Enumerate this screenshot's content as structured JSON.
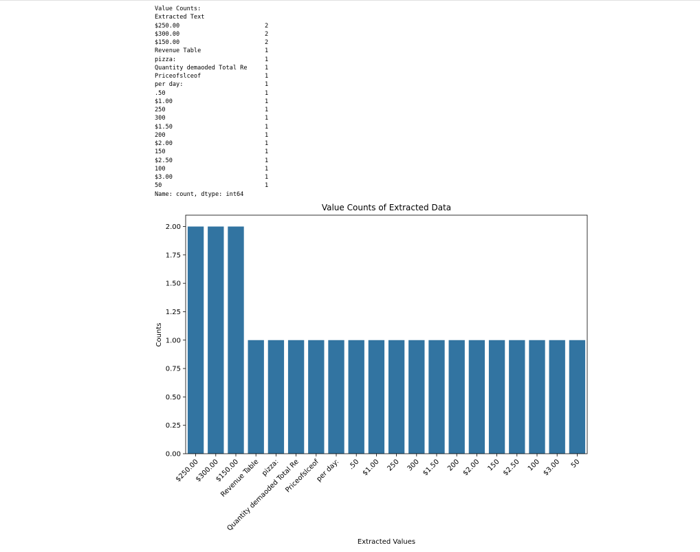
{
  "output": {
    "header": "Value Counts:",
    "index_name": "Extracted Text",
    "rows": [
      {
        "key": "$250.00",
        "count": "2"
      },
      {
        "key": "$300.00",
        "count": "2"
      },
      {
        "key": "$150.00",
        "count": "2"
      },
      {
        "key": "Revenue Table",
        "count": "1"
      },
      {
        "key": "pizza:",
        "count": "1"
      },
      {
        "key": "Quantity demaoded Total Re",
        "count": "1"
      },
      {
        "key": "Priceofslceof",
        "count": "1"
      },
      {
        "key": "per day:",
        "count": "1"
      },
      {
        "key": ".50",
        "count": "1"
      },
      {
        "key": "$1.00",
        "count": "1"
      },
      {
        "key": "250",
        "count": "1"
      },
      {
        "key": "300",
        "count": "1"
      },
      {
        "key": "$1.50",
        "count": "1"
      },
      {
        "key": "200",
        "count": "1"
      },
      {
        "key": "$2.00",
        "count": "1"
      },
      {
        "key": "150",
        "count": "1"
      },
      {
        "key": "$2.50",
        "count": "1"
      },
      {
        "key": "100",
        "count": "1"
      },
      {
        "key": "$3.00",
        "count": "1"
      },
      {
        "key": "50",
        "count": "1"
      }
    ],
    "footer": "Name: count, dtype: int64"
  },
  "chart_data": {
    "type": "bar",
    "title": "Value Counts of Extracted Data",
    "xlabel": "Extracted Values",
    "ylabel": "Counts",
    "categories": [
      "$250.00",
      "$300.00",
      "$150.00",
      "Revenue Table",
      "pizza:",
      "Quantity demaoded Total Re",
      "Priceofslceof",
      "per day:",
      ".50",
      "$1.00",
      "250",
      "300",
      "$1.50",
      "200",
      "$2.00",
      "150",
      "$2.50",
      "100",
      "$3.00",
      "50"
    ],
    "values": [
      2,
      2,
      2,
      1,
      1,
      1,
      1,
      1,
      1,
      1,
      1,
      1,
      1,
      1,
      1,
      1,
      1,
      1,
      1,
      1
    ],
    "ylim": [
      0,
      2.1
    ],
    "yticks": [
      "0.00",
      "0.25",
      "0.50",
      "0.75",
      "1.00",
      "1.25",
      "1.50",
      "1.75",
      "2.00"
    ],
    "bar_color": "#3274a1",
    "grid": false
  }
}
